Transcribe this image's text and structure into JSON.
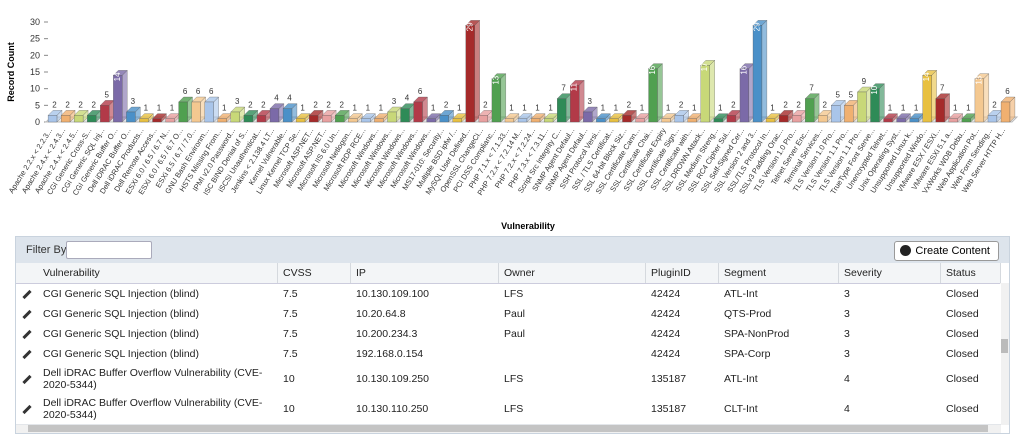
{
  "chart_data": {
    "type": "bar3d",
    "ylabel": "Record Count",
    "xlabel": "Vulnerability",
    "ylim": [
      0,
      30
    ],
    "yticks": [
      0,
      5,
      10,
      15,
      20,
      25,
      30
    ],
    "palette": [
      "#a9c5ea",
      "#f0b070",
      "#c8d878",
      "#2e8b57",
      "#b23a48",
      "#7b6aa8",
      "#4a90c8",
      "#e8c040",
      "#a52a2a",
      "#e8a0a0",
      "#50a050",
      "#f4c890"
    ],
    "categories": [
      "Apache 2.2.x < 2.2.3...",
      "Apache 2.4.x < 2.4.3...",
      "Apache 2.4.x < 2.4.5...",
      "CGI Generic Cross-S...",
      "CGI Generic SQL Inj...",
      "CGI Generic Buffer O...",
      "Dell iDRAC Buffer O...",
      "Dell iDRAC Products...",
      "Dell Remote Access...",
      "ESXi 6.0 / 6.5 / 6.7 N...",
      "ESXi 6.0 / 6.5 / 6.7 O...",
      "ESXi 6.5 / 6.7 / 7.0...",
      "GNU Bash Environm...",
      "HSTS Missing From...",
      "IPMI v2.0 Password...",
      "ISC BIND Denial of S...",
      "iSCSI Unauthenticat...",
      "Jenkins < 2.138.4 LT...",
      "Kernel Vulnerable...",
      "Linux Kernel TCP Se...",
      "Microsoft ASP.NET...",
      "Microsoft ASP.NET...",
      "Microsoft IIS 6.0 Un...",
      "Microsoft Netlogon...",
      "Microsoft RDP RCE...",
      "Microsoft Windows...",
      "Microsoft Windows...",
      "Microsoft Windows...",
      "Microsoft Windows...",
      "Microsoft Windows...",
      "MS17-010: Security...",
      "Multiple BSD ipfw /...",
      "MySQL User Defined...",
      "OpenSSL ChangeCi...",
      "PCI DSS Complianc...",
      "PHP 7.1.x < 7.1.33...",
      "PHP 7.2.x < 7.2.14 M...",
      "PHP 7.2.x < 7.2.24...",
      "PHP 7.3.x < 7.3.11...",
      "Script Src Integrity C...",
      "SNMP Agent Defaul...",
      "SNMP Agent Defaul...",
      "SSH Protocol Versi...",
      "SSL / TLS Certificat...",
      "SSL 64-bit Block Siz...",
      "SSL Certificate Cann...",
      "SSL Certificate Chai...",
      "SSL Certificate Expiry",
      "SSL Certificate Sign...",
      "SSL Certificate with...",
      "SSL DROWN Attack...",
      "SSL Medium Streng...",
      "SSL RC4 Cipher Sui...",
      "SSL Self-Signed Cer...",
      "SSL Version 2 and 3...",
      "SSL/TLS Protocol In...",
      "SSLv3 Padding Orac...",
      "TLS Version 1.0 Pro...",
      "Telnet Server Enc...",
      "Terminal Services...",
      "TLS Version 1.0 Pro...",
      "TLS Version 1.1 Pro...",
      "TLS Version 1.1 Pro...",
      "TrueType Font Serve...",
      "Unencrypted Telnet...",
      "Unix Operating Syst...",
      "Unsupported Linux k...",
      "Unsupported Windo...",
      "VMware ESX / ESXi...",
      "VMware ESXi 5.1 a...",
      "VxWorks WDB Debu...",
      "Web Application Pot...",
      "Web Form Sending...",
      "Web Server HTTP H..."
    ],
    "values": [
      2,
      2,
      2,
      2,
      5,
      14,
      3,
      1,
      1,
      1,
      6,
      6,
      6,
      1,
      3,
      2,
      2,
      4,
      4,
      1,
      2,
      2,
      2,
      1,
      1,
      1,
      3,
      4,
      6,
      1,
      2,
      1,
      29,
      2,
      13,
      1,
      1,
      1,
      1,
      7,
      11,
      3,
      1,
      1,
      2,
      1,
      16,
      1,
      2,
      1,
      17,
      1,
      2,
      16,
      29,
      1,
      2,
      2,
      7,
      2,
      5,
      5,
      9,
      10,
      1,
      1,
      1,
      14,
      7,
      1,
      1,
      13,
      2,
      6
    ]
  },
  "table": {
    "filter_label": "Filter By",
    "button": "Create Content",
    "columns": [
      "Vulnerability",
      "CVSS",
      "IP",
      "Owner",
      "PluginID",
      "Segment",
      "Severity",
      "Status"
    ],
    "rows": [
      [
        "CGI Generic SQL Injection (blind)",
        "7.5",
        "10.130.109.100",
        "LFS",
        "42424",
        "ATL-Int",
        "3",
        "Closed"
      ],
      [
        "CGI Generic SQL Injection (blind)",
        "7.5",
        "10.20.64.8",
        "Paul",
        "42424",
        "QTS-Prod",
        "3",
        "Closed"
      ],
      [
        "CGI Generic SQL Injection (blind)",
        "7.5",
        "10.200.234.3",
        "Paul",
        "42424",
        "SPA-NonProd",
        "3",
        "Closed"
      ],
      [
        "CGI Generic SQL Injection (blind)",
        "7.5",
        "192.168.0.154",
        null,
        "42424",
        "SPA-Corp",
        "3",
        "Closed"
      ],
      [
        "Dell iDRAC Buffer Overflow Vulnerability (CVE-2020-5344)",
        "10",
        "10.130.109.250",
        "LFS",
        "135187",
        "ATL-Int",
        "4",
        "Closed"
      ],
      [
        "Dell iDRAC Buffer Overflow Vulnerability (CVE-2020-5344)",
        "10",
        "10.130.110.250",
        "LFS",
        "135187",
        "CLT-Int",
        "4",
        "Closed"
      ]
    ]
  }
}
